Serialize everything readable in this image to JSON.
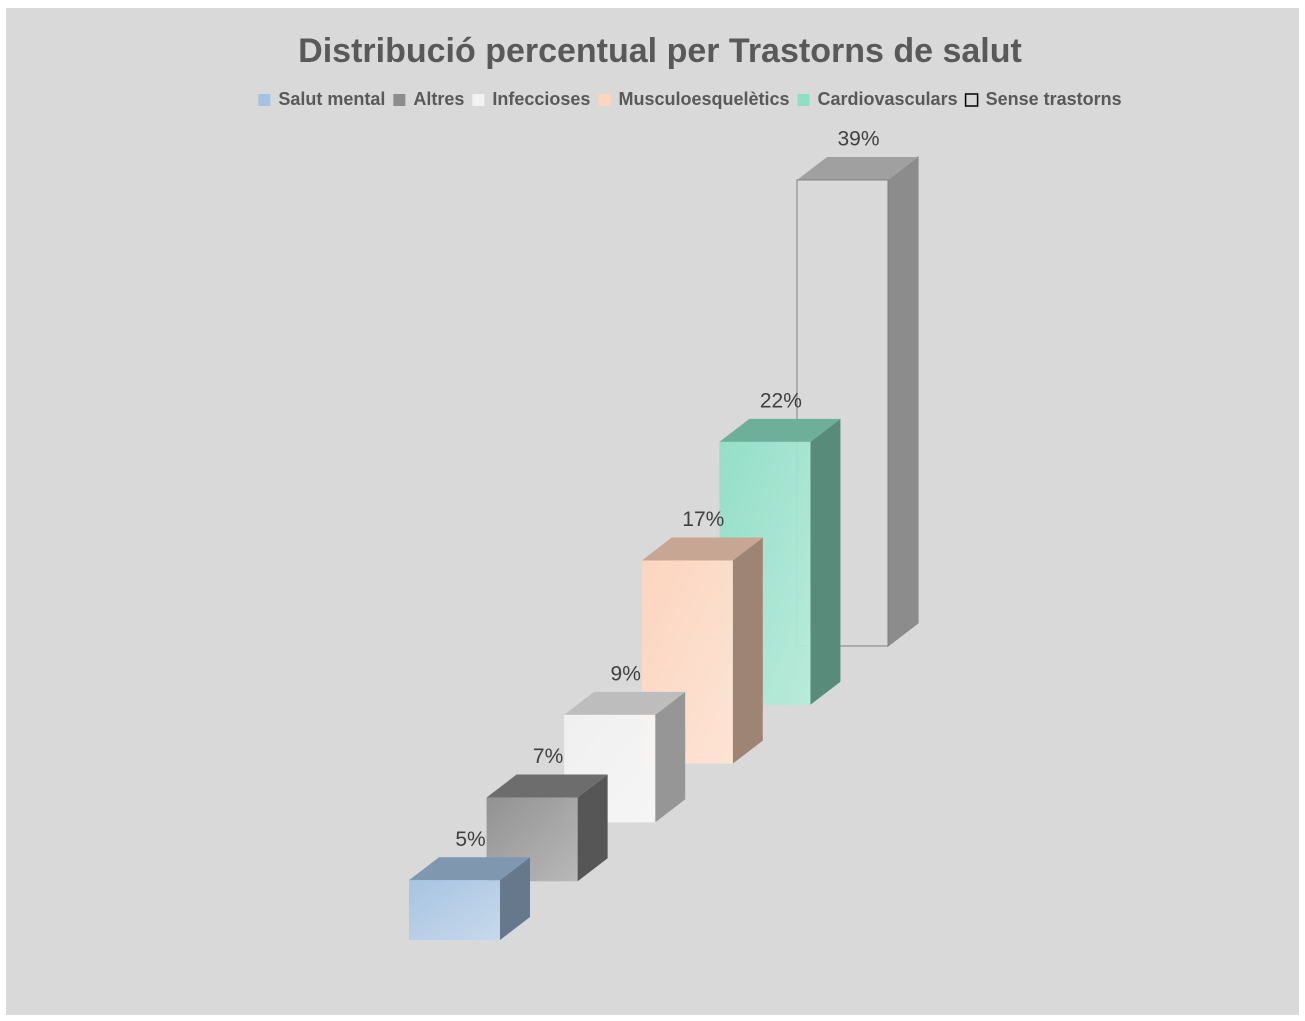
{
  "chart_data": {
    "type": "bar",
    "title": "Distribució percentual per Trastorns de salut",
    "series": [
      {
        "name": "Salut mental",
        "color": "#a4c2e2",
        "values": [
          5
        ],
        "value_labels": [
          "5%"
        ]
      },
      {
        "name": "Altres",
        "color": "#8c8c8c",
        "values": [
          7
        ],
        "value_labels": [
          "7%"
        ]
      },
      {
        "name": "Infeccioses",
        "color": "#f2f2f2",
        "values": [
          9
        ],
        "value_labels": [
          "9%"
        ]
      },
      {
        "name": "Musculoesquelètics",
        "color": "#ffd5bd",
        "values": [
          17
        ],
        "value_labels": [
          "17%"
        ]
      },
      {
        "name": "Cardiovasculars",
        "color": "#8ee0c5",
        "values": [
          22
        ],
        "value_labels": [
          "22%"
        ]
      },
      {
        "name": "Sense trastorns",
        "color": "#d9d9d9",
        "values": [
          39
        ],
        "value_labels": [
          "39%"
        ]
      }
    ],
    "legend": "top"
  }
}
